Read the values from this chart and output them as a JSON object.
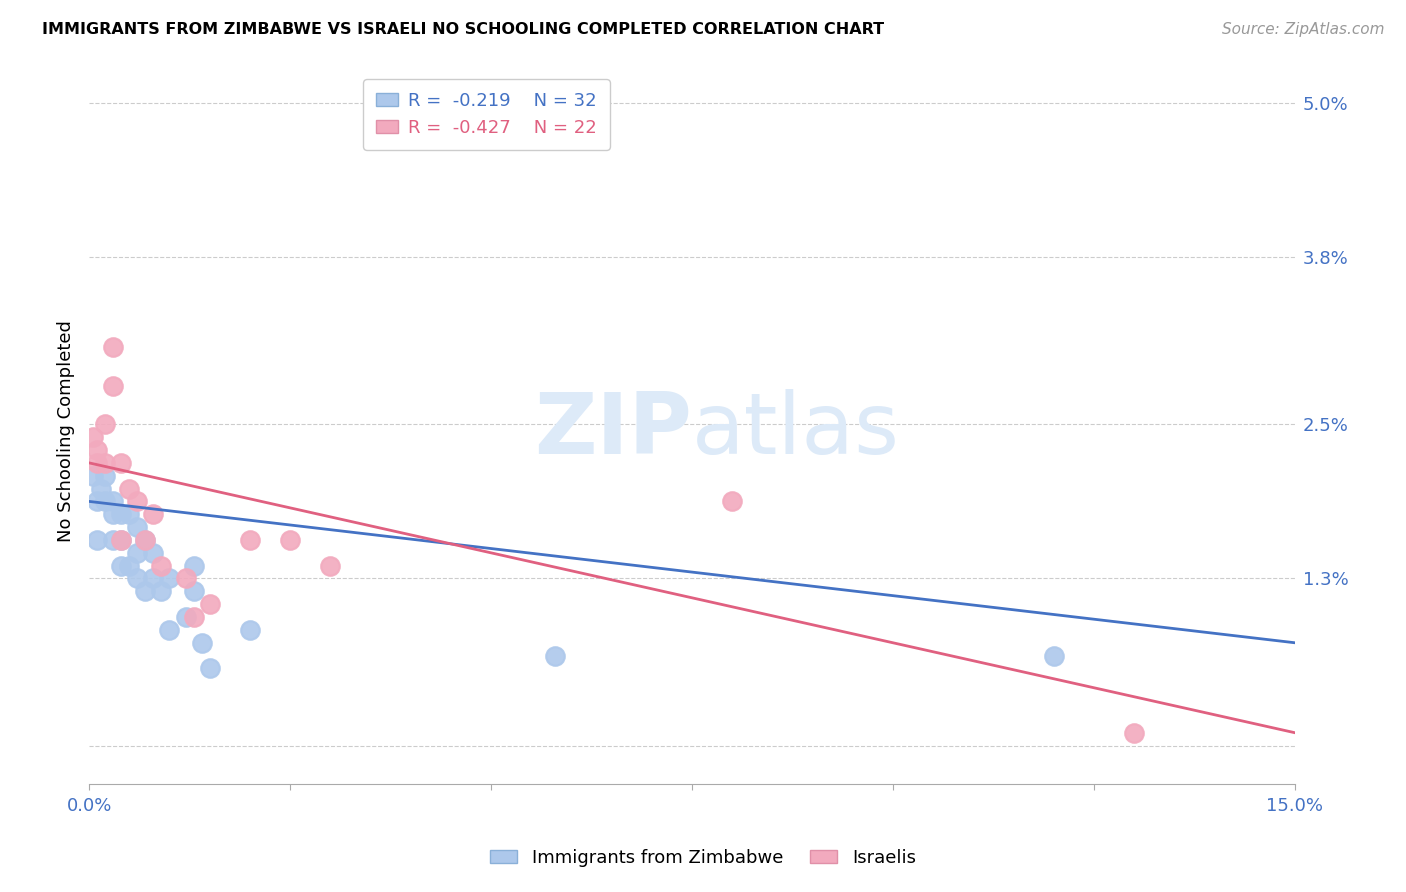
{
  "title": "IMMIGRANTS FROM ZIMBABWE VS ISRAELI NO SCHOOLING COMPLETED CORRELATION CHART",
  "source": "Source: ZipAtlas.com",
  "ylabel": "No Schooling Completed",
  "xmin": 0.0,
  "xmax": 0.15,
  "ymin": -0.003,
  "ymax": 0.052,
  "legend_r1": "-0.219",
  "legend_n1": "32",
  "legend_r2": "-0.427",
  "legend_n2": "22",
  "series1_color": "#adc8eb",
  "series2_color": "#f2aabe",
  "line1_color": "#4472c4",
  "line2_color": "#e06080",
  "watermark_color": "#ddeaf8",
  "zimbabwe_x": [
    0.0005,
    0.001,
    0.001,
    0.0015,
    0.002,
    0.002,
    0.003,
    0.003,
    0.003,
    0.004,
    0.004,
    0.004,
    0.005,
    0.005,
    0.006,
    0.006,
    0.006,
    0.007,
    0.007,
    0.008,
    0.008,
    0.009,
    0.01,
    0.01,
    0.012,
    0.013,
    0.013,
    0.014,
    0.015,
    0.02,
    0.058,
    0.12
  ],
  "zimbabwe_y": [
    0.021,
    0.016,
    0.019,
    0.02,
    0.021,
    0.019,
    0.019,
    0.018,
    0.016,
    0.018,
    0.016,
    0.014,
    0.018,
    0.014,
    0.017,
    0.015,
    0.013,
    0.016,
    0.012,
    0.015,
    0.013,
    0.012,
    0.013,
    0.009,
    0.01,
    0.014,
    0.012,
    0.008,
    0.006,
    0.009,
    0.007,
    0.007
  ],
  "israeli_x": [
    0.0005,
    0.001,
    0.001,
    0.002,
    0.002,
    0.003,
    0.003,
    0.004,
    0.004,
    0.005,
    0.006,
    0.007,
    0.008,
    0.009,
    0.012,
    0.013,
    0.015,
    0.02,
    0.025,
    0.03,
    0.08,
    0.13
  ],
  "israeli_y": [
    0.024,
    0.023,
    0.022,
    0.025,
    0.022,
    0.031,
    0.028,
    0.022,
    0.016,
    0.02,
    0.019,
    0.016,
    0.018,
    0.014,
    0.013,
    0.01,
    0.011,
    0.016,
    0.016,
    0.014,
    0.019,
    0.001
  ],
  "line1_x0": 0.0,
  "line1_x1": 0.15,
  "line1_y0": 0.019,
  "line1_y1": 0.008,
  "line2_x0": 0.0,
  "line2_x1": 0.15,
  "line2_y0": 0.022,
  "line2_y1": 0.001
}
